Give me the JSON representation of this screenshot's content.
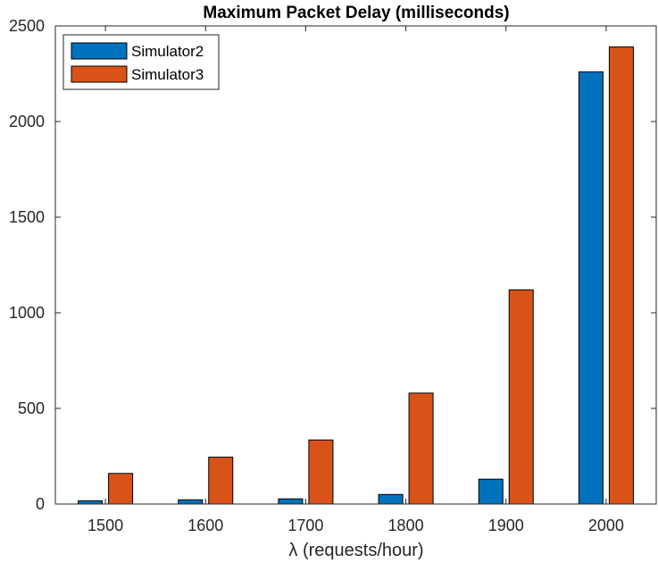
{
  "chart_data": {
    "type": "bar",
    "title": "Maximum Packet Delay (milliseconds)",
    "xlabel": "λ (requests/hour)",
    "ylabel": "",
    "categories": [
      "1500",
      "1600",
      "1700",
      "1800",
      "1900",
      "2000"
    ],
    "series": [
      {
        "name": "Simulator2",
        "color": "#0072BD",
        "values": [
          17,
          22,
          27,
          50,
          130,
          2260
        ]
      },
      {
        "name": "Simulator3",
        "color": "#D95319",
        "values": [
          160,
          245,
          335,
          580,
          1120,
          2390
        ]
      }
    ],
    "ylim": [
      0,
      2500
    ],
    "yticks": [
      0,
      500,
      1000,
      1500,
      2000,
      2500
    ],
    "grid": false,
    "legend_position": "top-left"
  }
}
